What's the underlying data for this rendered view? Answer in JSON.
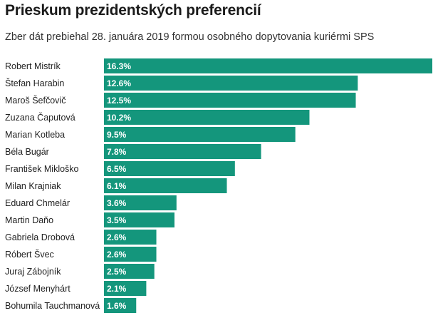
{
  "chart_data": {
    "type": "bar",
    "orientation": "horizontal",
    "title": "Prieskum prezidentských preferencií",
    "subtitle": "Zber dát prebiehal 28. januára 2019 formou osobného dopytovania kuriérmi SPS",
    "categories": [
      "Robert Mistrík",
      "Štefan Harabin",
      "Maroš Šefčovič",
      "Zuzana Čaputová",
      "Marian Kotleba",
      "Béla Bugár",
      "František Mikloško",
      "Milan Krajniak",
      "Eduard Chmelár",
      "Martin Daňo",
      "Gabriela Drobová",
      "Róbert Švec",
      "Juraj Zábojník",
      "József Menyhárt",
      "Bohumila Tauchmanová"
    ],
    "values": [
      16.3,
      12.6,
      12.5,
      10.2,
      9.5,
      7.8,
      6.5,
      6.1,
      3.6,
      3.5,
      2.6,
      2.6,
      2.5,
      2.1,
      1.6
    ],
    "value_labels": [
      "16.3%",
      "12.6%",
      "12.5%",
      "10.2%",
      "9.5%",
      "7.8%",
      "6.5%",
      "6.1%",
      "3.6%",
      "3.5%",
      "2.6%",
      "2.6%",
      "2.5%",
      "2.1%",
      "1.6%"
    ],
    "xlim": [
      0,
      16.3
    ],
    "bar_color": "#14967c",
    "grid": false,
    "legend": "none"
  }
}
